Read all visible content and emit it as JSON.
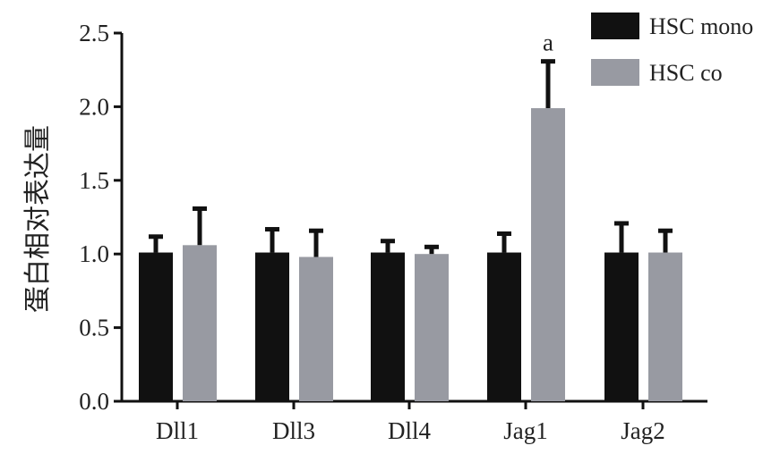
{
  "chart_data": {
    "type": "bar",
    "title": "",
    "xlabel": "",
    "ylabel": "蛋白相对表达量",
    "ylim": [
      0,
      2.5
    ],
    "yticks": [
      "0.0",
      "0.5",
      "1.0",
      "1.5",
      "2.0",
      "2.5"
    ],
    "categories": [
      "Dll1",
      "Dll3",
      "Dll4",
      "Jag1",
      "Jag2"
    ],
    "series": [
      {
        "name": "HSC mono",
        "color": "#111111",
        "values": [
          1.01,
          1.01,
          1.01,
          1.01,
          1.01
        ],
        "error": [
          0.12,
          0.17,
          0.09,
          0.14,
          0.21
        ]
      },
      {
        "name": "HSC co",
        "color": "#989aa2",
        "values": [
          1.06,
          0.98,
          1.0,
          1.99,
          1.01
        ],
        "error": [
          0.26,
          0.19,
          0.06,
          0.33,
          0.16
        ]
      }
    ],
    "annotations": [
      {
        "category": "Jag1",
        "series": "HSC co",
        "text": "a"
      }
    ],
    "legend": {
      "position": "top-right"
    },
    "grid": false
  }
}
